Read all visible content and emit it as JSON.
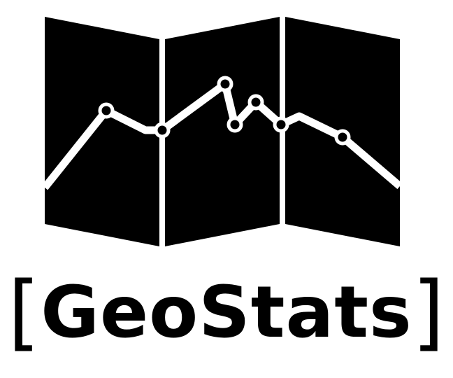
{
  "logo": {
    "bracket_open": "[",
    "name": "GeoStats",
    "bracket_close": "]",
    "colors": {
      "ink": "#000000",
      "background": "#ffffff",
      "line": "#ffffff"
    },
    "icon": "folded-map-with-line-chart-icon"
  }
}
